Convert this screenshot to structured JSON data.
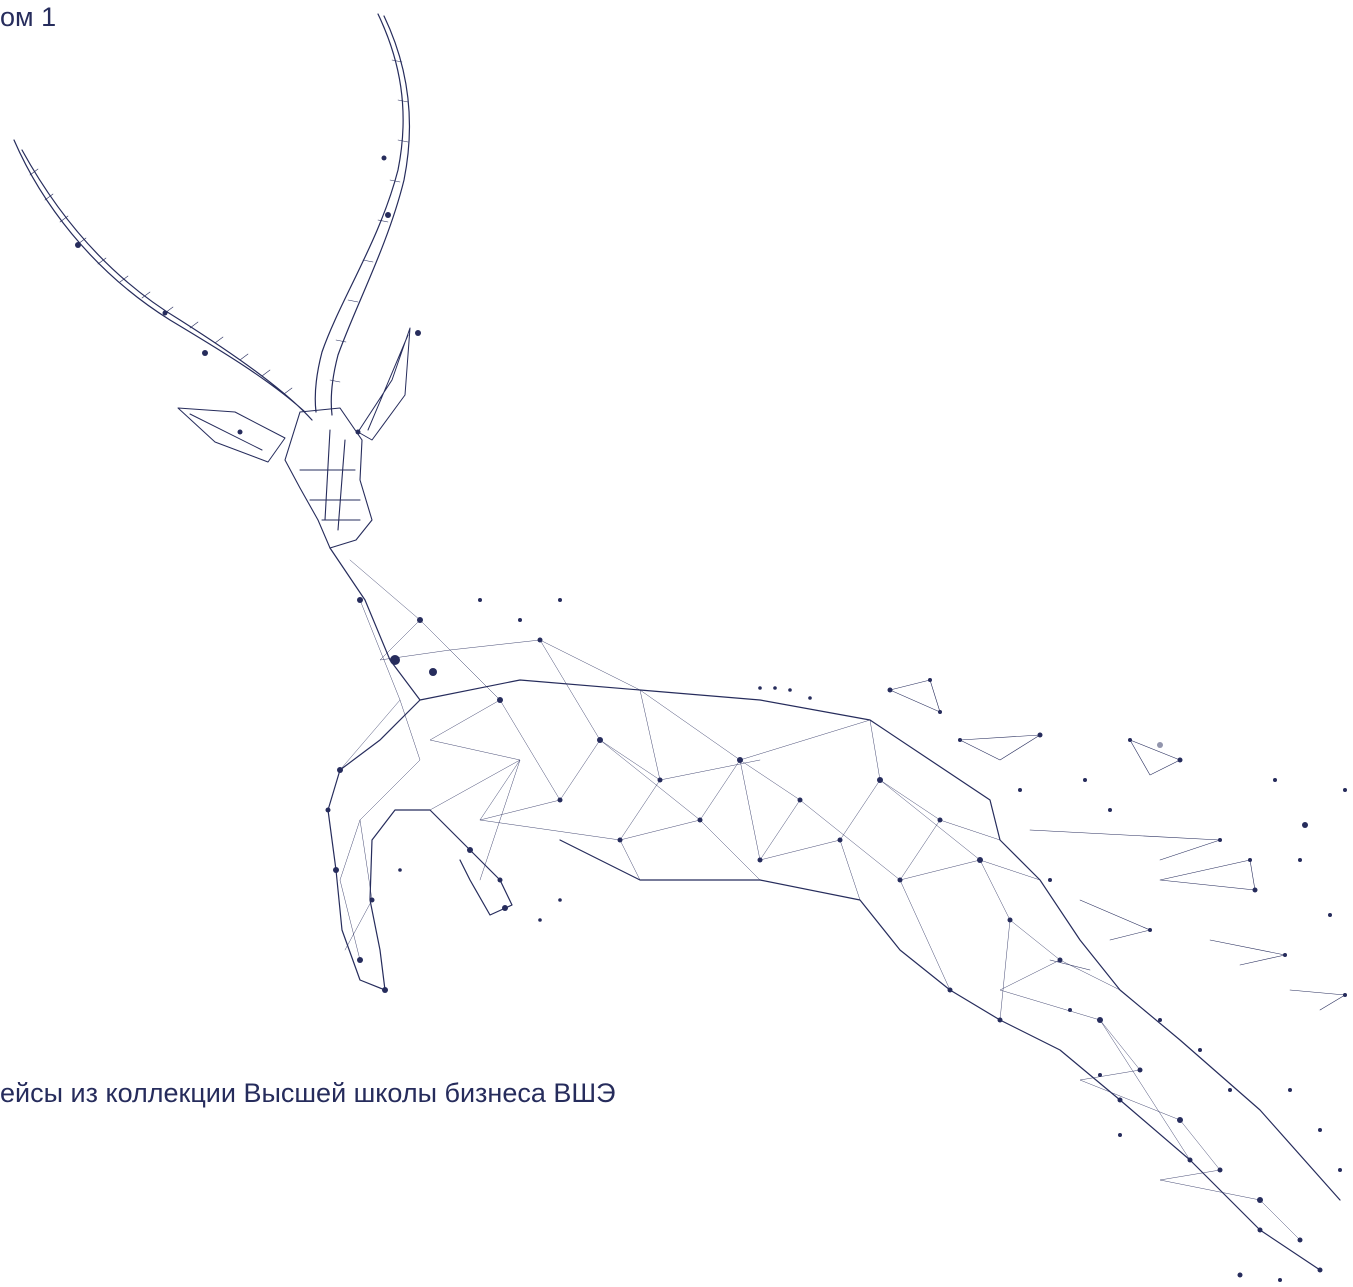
{
  "cover": {
    "volume_label": "ом 1",
    "subtitle": "ейсы из коллекции Высшей школы бизнеса ВШЭ"
  },
  "illustration": {
    "icon": "antelope-network-illustration",
    "color": "#262c5c"
  }
}
